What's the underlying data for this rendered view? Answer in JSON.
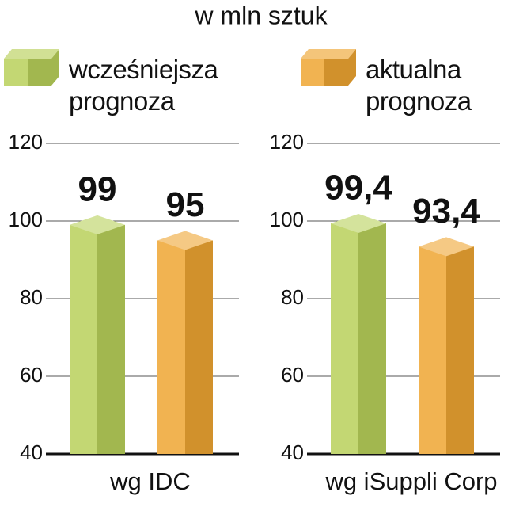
{
  "chart_data": {
    "type": "bar",
    "title": "w mln sztuk",
    "categories": [
      "wg IDC",
      "wg iSuppli Corp"
    ],
    "series": [
      {
        "name": "wcześniejsza prognoza",
        "color": "#b8d05a",
        "values": [
          99,
          99.4
        ],
        "value_labels": [
          "99",
          "99,4"
        ]
      },
      {
        "name": "aktualna prognoza",
        "color": "#eea532",
        "values": [
          95,
          93.4
        ],
        "value_labels": [
          "95",
          "93,4"
        ]
      }
    ],
    "ylim": [
      40,
      120
    ],
    "yticks": [
      40,
      60,
      80,
      100,
      120
    ],
    "grid": true
  }
}
